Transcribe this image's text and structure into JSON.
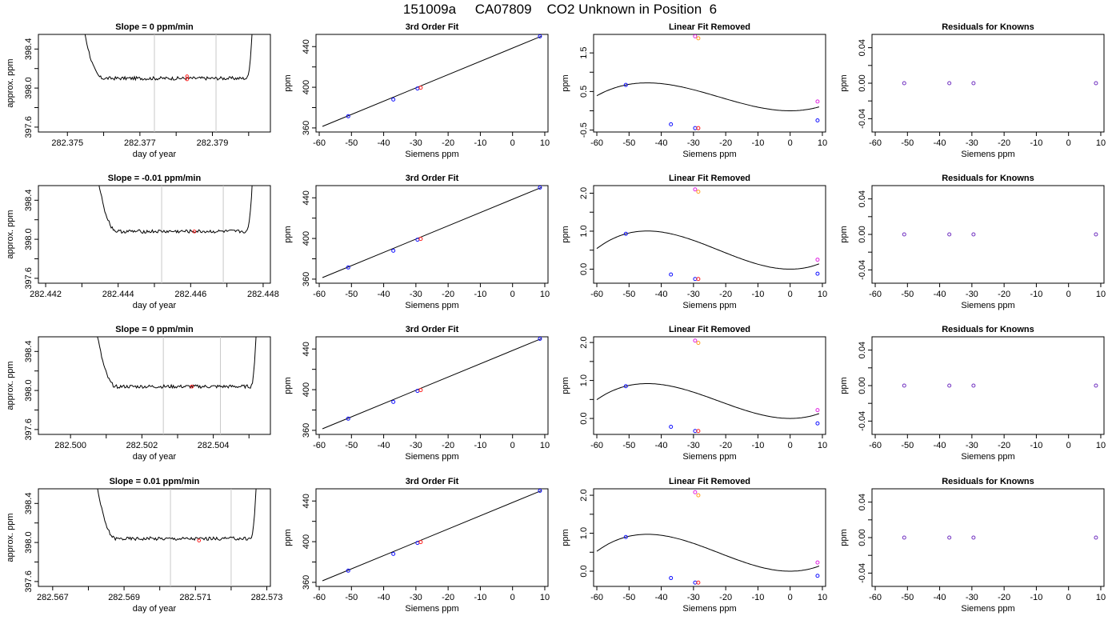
{
  "figure": {
    "title": "151009a     CA07809    CO2 Unknown in Position  6"
  },
  "chart_data": [
    {
      "type": "line",
      "title": "Slope =  0  ppm/min",
      "xlabel": "day of year",
      "ylabel": "approx. ppm",
      "xlim": [
        282.3742,
        282.3806
      ],
      "ylim": [
        397.55,
        398.55
      ],
      "xticks": [
        282.375,
        282.376,
        282.377,
        282.378,
        282.379,
        282.38
      ],
      "xticklabels": [
        "282.375",
        "",
        "282.377",
        "",
        "282.379",
        ""
      ],
      "yticks": [
        397.6,
        397.8,
        398.0,
        398.2,
        398.4
      ],
      "yticklabels": [
        "397.6",
        "",
        "398.0",
        "",
        "398.4"
      ],
      "vlines": [
        282.3774,
        282.3791
      ],
      "flat_level": 398.1,
      "rise_start": 282.3753,
      "rise_end": 282.38,
      "red_points": [
        {
          "x": 282.3783,
          "y": 398.12
        },
        {
          "x": 282.3783,
          "y": 398.09
        }
      ]
    },
    {
      "type": "line",
      "title": "3rd Order Fit",
      "xlabel": "Siemens ppm",
      "ylabel": "ppm",
      "xlim": [
        -61,
        11
      ],
      "ylim": [
        356,
        452
      ],
      "xticks": [
        -60,
        -50,
        -40,
        -30,
        -20,
        -10,
        0,
        10
      ],
      "yticks": [
        360,
        380,
        400,
        420,
        440
      ],
      "yticklabels": [
        "360",
        "",
        "400",
        "",
        "440"
      ],
      "fit": [
        [
          -59,
          361.5
        ],
        [
          9,
          450.3
        ]
      ],
      "points": [
        {
          "x": -51,
          "y": 371.5,
          "c": "blue"
        },
        {
          "x": -37,
          "y": 388.0,
          "c": "blue"
        },
        {
          "x": -29.5,
          "y": 398.8,
          "c": "blue"
        },
        {
          "x": -28.5,
          "y": 399.6,
          "c": "red"
        },
        {
          "x": 8.5,
          "y": 450.0,
          "c": "blue"
        }
      ]
    },
    {
      "type": "line",
      "title": "Linear Fit Removed",
      "xlabel": "Siemens ppm",
      "ylabel": "ppm",
      "xlim": [
        -61,
        11
      ],
      "ylim": [
        -0.55,
        1.98
      ],
      "xticks": [
        -60,
        -50,
        -40,
        -30,
        -20,
        -10,
        0,
        10
      ],
      "yticks": [
        -0.5,
        0,
        0.5,
        1.0,
        1.5
      ],
      "yticklabels": [
        "-0.5",
        "",
        "0.5",
        "",
        "1.5"
      ],
      "curve": {
        "a": 0.0015,
        "b": 0.0667,
        "c": 0.0,
        "d": -0.059
      },
      "points": [
        {
          "x": -51,
          "y": 0.67,
          "c": "blue"
        },
        {
          "x": -37,
          "y": -0.35,
          "c": "blue"
        },
        {
          "x": -29.5,
          "y": -0.45,
          "c": "blue"
        },
        {
          "x": -28.5,
          "y": -0.45,
          "c": "red"
        },
        {
          "x": 8.5,
          "y": -0.25,
          "c": "blue"
        },
        {
          "x": 8.5,
          "y": 0.24,
          "c": "magenta"
        },
        {
          "x": -29.5,
          "y": 1.93,
          "c": "magenta"
        },
        {
          "x": -28.5,
          "y": 1.88,
          "c": "orange"
        }
      ]
    },
    {
      "type": "scatter",
      "title": "Residuals for Knowns",
      "xlabel": "Siemens ppm",
      "ylabel": "ppm",
      "xlim": [
        -61,
        11
      ],
      "ylim": [
        -0.055,
        0.055
      ],
      "xticks": [
        -60,
        -50,
        -40,
        -30,
        -20,
        -10,
        0,
        10
      ],
      "yticks": [
        -0.04,
        -0.02,
        0,
        0.02,
        0.04
      ],
      "yticklabels": [
        "-0.04",
        "",
        "0.00",
        "",
        "0.04"
      ],
      "points": [
        {
          "x": -51,
          "y": 0,
          "c": "purple"
        },
        {
          "x": -37,
          "y": 0,
          "c": "purple"
        },
        {
          "x": -29.5,
          "y": 0,
          "c": "purple"
        },
        {
          "x": 8.5,
          "y": 0,
          "c": "purple"
        }
      ]
    },
    {
      "type": "line",
      "title": "Slope =  -0.01  ppm/min",
      "xlabel": "day of year",
      "ylabel": "approx. ppm",
      "xlim": [
        282.4418,
        282.4482
      ],
      "ylim": [
        397.55,
        398.55
      ],
      "xticks": [
        282.442,
        282.443,
        282.444,
        282.445,
        282.446,
        282.447,
        282.448
      ],
      "xticklabels": [
        "282.442",
        "",
        "282.444",
        "",
        "282.446",
        "",
        "282.448"
      ],
      "yticks": [
        397.6,
        397.8,
        398.0,
        398.2,
        398.4
      ],
      "yticklabels": [
        "397.6",
        "",
        "398.0",
        "",
        "398.4"
      ],
      "vlines": [
        282.4452,
        282.4469
      ],
      "flat_level": 398.08,
      "rise_start": 282.4433,
      "rise_end": 282.4476,
      "red_points": [
        {
          "x": 282.4461,
          "y": 398.08
        }
      ]
    },
    {
      "type": "line",
      "title": "3rd Order Fit",
      "xlabel": "Siemens ppm",
      "ylabel": "ppm",
      "xlim": [
        -61,
        11
      ],
      "ylim": [
        356,
        452
      ],
      "xticks": [
        -60,
        -50,
        -40,
        -30,
        -20,
        -10,
        0,
        10
      ],
      "yticks": [
        360,
        380,
        400,
        420,
        440
      ],
      "yticklabels": [
        "360",
        "",
        "400",
        "",
        "440"
      ],
      "fit": [
        [
          -59,
          361.5
        ],
        [
          9,
          450.3
        ]
      ],
      "points": [
        {
          "x": -51,
          "y": 371.5,
          "c": "blue"
        },
        {
          "x": -37,
          "y": 388.0,
          "c": "blue"
        },
        {
          "x": -29.5,
          "y": 398.8,
          "c": "blue"
        },
        {
          "x": -28.5,
          "y": 399.6,
          "c": "red"
        },
        {
          "x": 8.5,
          "y": 450.0,
          "c": "blue"
        }
      ]
    },
    {
      "type": "line",
      "title": "Linear Fit Removed",
      "xlabel": "Siemens ppm",
      "ylabel": "ppm",
      "xlim": [
        -61,
        11
      ],
      "ylim": [
        -0.37,
        2.2
      ],
      "xticks": [
        -60,
        -50,
        -40,
        -30,
        -20,
        -10,
        0,
        10
      ],
      "yticks": [
        0,
        0.5,
        1.0,
        1.5,
        2.0
      ],
      "yticklabels": [
        "0.0",
        "",
        "1.0",
        "",
        "2.0"
      ],
      "curve": {
        "a": 0.0017,
        "b": 0.075,
        "c": 0.0,
        "d": -0.066
      },
      "points": [
        {
          "x": -51,
          "y": 0.93,
          "c": "blue"
        },
        {
          "x": -37,
          "y": -0.14,
          "c": "blue"
        },
        {
          "x": -29.5,
          "y": -0.26,
          "c": "blue"
        },
        {
          "x": -28.5,
          "y": -0.26,
          "c": "red"
        },
        {
          "x": 8.5,
          "y": -0.12,
          "c": "blue"
        },
        {
          "x": 8.5,
          "y": 0.25,
          "c": "magenta"
        },
        {
          "x": -29.5,
          "y": 2.1,
          "c": "magenta"
        },
        {
          "x": -28.5,
          "y": 2.04,
          "c": "orange"
        }
      ]
    },
    {
      "type": "scatter",
      "title": "Residuals for Knowns",
      "xlabel": "Siemens ppm",
      "ylabel": "ppm",
      "xlim": [
        -61,
        11
      ],
      "ylim": [
        -0.055,
        0.055
      ],
      "xticks": [
        -60,
        -50,
        -40,
        -30,
        -20,
        -10,
        0,
        10
      ],
      "yticks": [
        -0.04,
        -0.02,
        0,
        0.02,
        0.04
      ],
      "yticklabels": [
        "-0.04",
        "",
        "0.00",
        "",
        "0.04"
      ],
      "points": [
        {
          "x": -51,
          "y": 0,
          "c": "purple"
        },
        {
          "x": -37,
          "y": 0,
          "c": "purple"
        },
        {
          "x": -29.5,
          "y": 0,
          "c": "purple"
        },
        {
          "x": 8.5,
          "y": 0,
          "c": "purple"
        }
      ]
    },
    {
      "type": "line",
      "title": "Slope =  0  ppm/min",
      "xlabel": "day of year",
      "ylabel": "approx. ppm",
      "xlim": [
        282.4991,
        282.5056
      ],
      "ylim": [
        397.55,
        398.55
      ],
      "xticks": [
        282.5,
        282.501,
        282.502,
        282.503,
        282.504,
        282.505
      ],
      "xticklabels": [
        "282.500",
        "",
        "282.502",
        "",
        "282.504",
        ""
      ],
      "yticks": [
        397.6,
        397.8,
        398.0,
        398.2,
        398.4
      ],
      "yticklabels": [
        "397.6",
        "",
        "398.0",
        "",
        "398.4"
      ],
      "vlines": [
        282.5026,
        282.5042
      ],
      "flat_level": 398.04,
      "rise_start": 282.5006,
      "rise_end": 282.5051,
      "red_points": [
        {
          "x": 282.5034,
          "y": 398.04
        }
      ]
    },
    {
      "type": "line",
      "title": "3rd Order Fit",
      "xlabel": "Siemens ppm",
      "ylabel": "ppm",
      "xlim": [
        -61,
        11
      ],
      "ylim": [
        356,
        452
      ],
      "xticks": [
        -60,
        -50,
        -40,
        -30,
        -20,
        -10,
        0,
        10
      ],
      "yticks": [
        360,
        380,
        400,
        420,
        440
      ],
      "yticklabels": [
        "360",
        "",
        "400",
        "",
        "440"
      ],
      "fit": [
        [
          -59,
          361.5
        ],
        [
          9,
          450.3
        ]
      ],
      "points": [
        {
          "x": -51,
          "y": 371.5,
          "c": "blue"
        },
        {
          "x": -37,
          "y": 388.0,
          "c": "blue"
        },
        {
          "x": -29.5,
          "y": 398.8,
          "c": "blue"
        },
        {
          "x": -28.5,
          "y": 399.6,
          "c": "red"
        },
        {
          "x": 8.5,
          "y": 450.0,
          "c": "blue"
        }
      ]
    },
    {
      "type": "line",
      "title": "Linear Fit Removed",
      "xlabel": "Siemens ppm",
      "ylabel": "ppm",
      "xlim": [
        -61,
        11
      ],
      "ylim": [
        -0.42,
        2.15
      ],
      "xticks": [
        -60,
        -50,
        -40,
        -30,
        -20,
        -10,
        0,
        10
      ],
      "yticks": [
        0,
        0.5,
        1.0,
        1.5,
        2.0
      ],
      "yticklabels": [
        "0.0",
        "",
        "1.0",
        "",
        "2.0"
      ],
      "curve": {
        "a": 0.0016,
        "b": 0.072,
        "c": 0.0,
        "d": -0.063
      },
      "points": [
        {
          "x": -51,
          "y": 0.85,
          "c": "blue"
        },
        {
          "x": -37,
          "y": -0.22,
          "c": "blue"
        },
        {
          "x": -29.5,
          "y": -0.33,
          "c": "blue"
        },
        {
          "x": -28.5,
          "y": -0.33,
          "c": "red"
        },
        {
          "x": 8.5,
          "y": -0.13,
          "c": "blue"
        },
        {
          "x": 8.5,
          "y": 0.22,
          "c": "magenta"
        },
        {
          "x": -29.5,
          "y": 2.05,
          "c": "magenta"
        },
        {
          "x": -28.5,
          "y": 1.99,
          "c": "orange"
        }
      ]
    },
    {
      "type": "scatter",
      "title": "Residuals for Knowns",
      "xlabel": "Siemens ppm",
      "ylabel": "ppm",
      "xlim": [
        -61,
        11
      ],
      "ylim": [
        -0.055,
        0.055
      ],
      "xticks": [
        -60,
        -50,
        -40,
        -30,
        -20,
        -10,
        0,
        10
      ],
      "yticks": [
        -0.04,
        -0.02,
        0,
        0.02,
        0.04
      ],
      "yticklabels": [
        "-0.04",
        "",
        "0.00",
        "",
        "0.04"
      ],
      "points": [
        {
          "x": -51,
          "y": 0,
          "c": "purple"
        },
        {
          "x": -37,
          "y": 0,
          "c": "purple"
        },
        {
          "x": -29.5,
          "y": 0,
          "c": "purple"
        },
        {
          "x": 8.5,
          "y": 0,
          "c": "purple"
        }
      ]
    },
    {
      "type": "line",
      "title": "Slope =  0.01  ppm/min",
      "xlabel": "day of year",
      "ylabel": "approx. ppm",
      "xlim": [
        282.5666,
        282.5731
      ],
      "ylim": [
        397.55,
        398.55
      ],
      "xticks": [
        282.567,
        282.568,
        282.569,
        282.57,
        282.571,
        282.572,
        282.573
      ],
      "xticklabels": [
        "282.567",
        "",
        "282.569",
        "",
        "282.571",
        "",
        "282.573"
      ],
      "yticks": [
        397.6,
        397.8,
        398.0,
        398.2,
        398.4
      ],
      "yticklabels": [
        "397.6",
        "",
        "398.0",
        "",
        "398.4"
      ],
      "vlines": [
        282.5703,
        282.572
      ],
      "flat_level": 398.04,
      "rise_start": 282.5681,
      "rise_end": 282.5726,
      "red_points": [
        {
          "x": 282.5711,
          "y": 398.02
        }
      ]
    },
    {
      "type": "line",
      "title": "3rd Order Fit",
      "xlabel": "Siemens ppm",
      "ylabel": "ppm",
      "xlim": [
        -61,
        11
      ],
      "ylim": [
        356,
        452
      ],
      "xticks": [
        -60,
        -50,
        -40,
        -30,
        -20,
        -10,
        0,
        10
      ],
      "yticks": [
        360,
        380,
        400,
        420,
        440
      ],
      "yticklabels": [
        "360",
        "",
        "400",
        "",
        "440"
      ],
      "fit": [
        [
          -59,
          361.5
        ],
        [
          9,
          450.3
        ]
      ],
      "points": [
        {
          "x": -51,
          "y": 371.5,
          "c": "blue"
        },
        {
          "x": -37,
          "y": 388.0,
          "c": "blue"
        },
        {
          "x": -29.5,
          "y": 398.8,
          "c": "blue"
        },
        {
          "x": -28.5,
          "y": 399.6,
          "c": "red"
        },
        {
          "x": 8.5,
          "y": 450.0,
          "c": "blue"
        }
      ]
    },
    {
      "type": "line",
      "title": "Linear Fit Removed",
      "xlabel": "Siemens ppm",
      "ylabel": "ppm",
      "xlim": [
        -61,
        11
      ],
      "ylim": [
        -0.4,
        2.17
      ],
      "xticks": [
        -60,
        -50,
        -40,
        -30,
        -20,
        -10,
        0,
        10
      ],
      "yticks": [
        0,
        0.5,
        1.0,
        1.5,
        2.0
      ],
      "yticklabels": [
        "0.0",
        "",
        "1.0",
        "",
        "2.0"
      ],
      "curve": {
        "a": 0.0016,
        "b": 0.073,
        "c": 0.0,
        "d": -0.064
      },
      "points": [
        {
          "x": -51,
          "y": 0.9,
          "c": "blue"
        },
        {
          "x": -37,
          "y": -0.18,
          "c": "blue"
        },
        {
          "x": -29.5,
          "y": -0.3,
          "c": "blue"
        },
        {
          "x": -28.5,
          "y": -0.3,
          "c": "red"
        },
        {
          "x": 8.5,
          "y": -0.12,
          "c": "blue"
        },
        {
          "x": 8.5,
          "y": 0.23,
          "c": "magenta"
        },
        {
          "x": -29.5,
          "y": 2.08,
          "c": "magenta"
        },
        {
          "x": -28.5,
          "y": 2.0,
          "c": "orange"
        }
      ]
    },
    {
      "type": "scatter",
      "title": "Residuals for Knowns",
      "xlabel": "Siemens ppm",
      "ylabel": "ppm",
      "xlim": [
        -61,
        11
      ],
      "ylim": [
        -0.055,
        0.055
      ],
      "xticks": [
        -60,
        -50,
        -40,
        -30,
        -20,
        -10,
        0,
        10
      ],
      "yticks": [
        -0.04,
        -0.02,
        0,
        0.02,
        0.04
      ],
      "yticklabels": [
        "-0.04",
        "",
        "0.00",
        "",
        "0.04"
      ],
      "points": [
        {
          "x": -51,
          "y": 0,
          "c": "purple"
        },
        {
          "x": -37,
          "y": 0,
          "c": "purple"
        },
        {
          "x": -29.5,
          "y": 0,
          "c": "purple"
        },
        {
          "x": 8.5,
          "y": 0,
          "c": "purple"
        }
      ]
    }
  ],
  "colors": {
    "blue": "#1010ff",
    "red": "#ff2020",
    "magenta": "#e020e0",
    "orange": "#ffa020",
    "purple": "#7030c0",
    "vline": "#c8c8c8"
  }
}
